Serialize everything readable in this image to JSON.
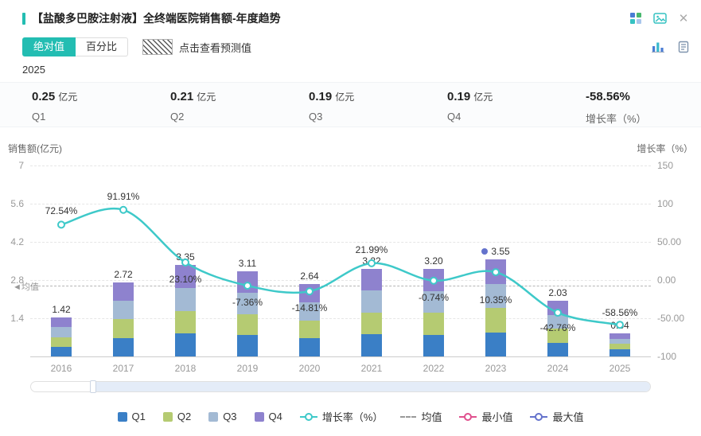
{
  "colors": {
    "accent": "#23bdb2",
    "line": "#3ec9c9",
    "quarters": [
      "#3a7fc6",
      "#b5cb72",
      "#a3bad4",
      "#8e82ce"
    ],
    "mean_line": "#b5b5b5",
    "min_marker": "#e0508e",
    "max_marker": "#6472cc",
    "grid": "#e6e6e6",
    "axis_text": "#999999"
  },
  "header": {
    "title": "【盐酸多巴胺注射液】全终端医院销售额-年度趋势",
    "close_label": "✕"
  },
  "controls": {
    "toggles": [
      {
        "label": "绝对值",
        "active": true
      },
      {
        "label": "百分比",
        "active": false
      }
    ],
    "forecast_hint": "点击查看预测值",
    "year_label": "2025"
  },
  "stats": [
    {
      "value": "0.25",
      "unit": "亿元",
      "label": "Q1"
    },
    {
      "value": "0.21",
      "unit": "亿元",
      "label": "Q2"
    },
    {
      "value": "0.19",
      "unit": "亿元",
      "label": "Q3"
    },
    {
      "value": "0.19",
      "unit": "亿元",
      "label": "Q4"
    },
    {
      "value": "-58.56%",
      "unit": "",
      "label": "增长率（%）"
    }
  ],
  "chart_data": {
    "type": "bar+line",
    "title": "全终端医院销售额-年度趋势",
    "categories": [
      "2016",
      "2017",
      "2018",
      "2019",
      "2020",
      "2021",
      "2022",
      "2023",
      "2024",
      "2025"
    ],
    "series": [
      {
        "name": "销售额合计(亿元)",
        "type": "bar",
        "stacked": true,
        "values": [
          1.42,
          2.72,
          3.35,
          3.11,
          2.64,
          3.22,
          3.2,
          3.55,
          2.03,
          0.84
        ]
      },
      {
        "name": "增长率(%)",
        "type": "line",
        "values": [
          72.54,
          91.91,
          23.1,
          -7.36,
          -14.81,
          21.99,
          -0.74,
          10.35,
          -42.76,
          -58.56
        ]
      }
    ],
    "quarter_names": [
      "Q1",
      "Q2",
      "Q3",
      "Q4"
    ],
    "quarters_by_year": {
      "2025": [
        0.25,
        0.21,
        0.19,
        0.19
      ]
    },
    "left_axis": {
      "label": "销售额(亿元)",
      "min": 0,
      "max": 7,
      "ticks": [
        "7",
        "5.6",
        "4.2",
        "2.8",
        "1.4"
      ]
    },
    "right_axis": {
      "label": "增长率（%）",
      "min": -100,
      "max": 150,
      "ticks": [
        "150",
        "100",
        "50.00",
        "0.00",
        "-50.00",
        "-100"
      ]
    },
    "mean": {
      "label": "均值",
      "value": 2.61
    },
    "max_marker": {
      "year": "2023",
      "value": 3.55
    },
    "growth_label_dy": [
      -24,
      -24,
      14,
      14,
      14,
      -24,
      14,
      28,
      12,
      -22
    ],
    "grid": true,
    "legend_position": "bottom"
  },
  "legend": [
    {
      "key": "q1",
      "label": "Q1",
      "type": "square",
      "color": "#3a7fc6"
    },
    {
      "key": "q2",
      "label": "Q2",
      "type": "square",
      "color": "#b5cb72"
    },
    {
      "key": "q3",
      "label": "Q3",
      "type": "square",
      "color": "#a3bad4"
    },
    {
      "key": "q4",
      "label": "Q4",
      "type": "square",
      "color": "#8e82ce"
    },
    {
      "key": "growth-rate",
      "label": "增长率（%）",
      "type": "line-circle",
      "color": "#3ec9c9"
    },
    {
      "key": "mean",
      "label": "均值",
      "type": "dashed",
      "color": "#999999"
    },
    {
      "key": "min",
      "label": "最小值",
      "type": "line-circle",
      "color": "#e0508e"
    },
    {
      "key": "max",
      "label": "最大值",
      "type": "line-circle",
      "color": "#6472cc"
    }
  ]
}
